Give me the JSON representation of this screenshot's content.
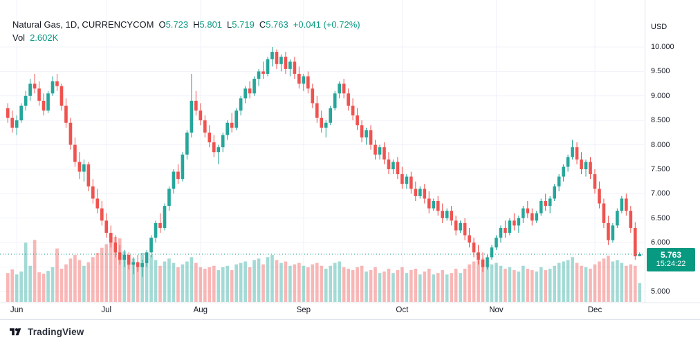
{
  "header": {
    "symbol": "Natural Gas, 1D, CURRENCYCOM",
    "open_label": "O",
    "open_value": "5.723",
    "high_label": "H",
    "high_value": "5.801",
    "low_label": "L",
    "low_value": "5.719",
    "close_label": "C",
    "close_value": "5.763",
    "change": "+0.041 (+0.72%)",
    "vol_label": "Vol",
    "vol_value": "2.602K"
  },
  "price_axis": {
    "currency": "USD",
    "labels": [
      "10.000",
      "9.500",
      "9.000",
      "8.500",
      "8.000",
      "7.500",
      "7.000",
      "6.500",
      "6.000",
      "5.000"
    ]
  },
  "price_badge": {
    "value": "5.763",
    "countdown": "15:24:22"
  },
  "logo": {
    "text": "TradingView"
  },
  "colors": {
    "up": "#26a69a",
    "down": "#ef5350",
    "vol_up": "rgba(38,166,154,0.42)",
    "vol_down": "rgba(239,83,80,0.42)",
    "accent_green": "#089981",
    "text": "#131722",
    "grid": "#f0f3fa",
    "separator": "#e0e3eb",
    "badge_bg": "#089981"
  },
  "chart_data": {
    "type": "candlestick",
    "title": "Natural Gas, 1D, CURRENCYCOM",
    "ylabel": "USD",
    "last_price": 5.763,
    "y_axis": {
      "min": 5.0,
      "max": 10.0,
      "ticks": [
        5.0,
        5.5,
        6.0,
        6.5,
        7.0,
        7.5,
        8.0,
        8.5,
        9.0,
        9.5,
        10.0
      ]
    },
    "x_axis": {
      "month_ticks": [
        {
          "label": "Jun",
          "index": 2
        },
        {
          "label": "Jul",
          "index": 22
        },
        {
          "label": "Aug",
          "index": 43
        },
        {
          "label": "Sep",
          "index": 66
        },
        {
          "label": "Oct",
          "index": 88
        },
        {
          "label": "Nov",
          "index": 109
        },
        {
          "label": "Dec",
          "index": 131
        }
      ]
    },
    "candles_format": [
      "open",
      "high",
      "low",
      "close",
      "volume_k"
    ],
    "candles": [
      [
        8.75,
        8.85,
        8.45,
        8.55,
        4.0
      ],
      [
        8.55,
        8.7,
        8.25,
        8.35,
        4.5
      ],
      [
        8.35,
        8.6,
        8.2,
        8.5,
        3.8
      ],
      [
        8.5,
        8.85,
        8.45,
        8.8,
        4.2
      ],
      [
        8.8,
        9.1,
        8.7,
        9.0,
        8.2
      ],
      [
        9.0,
        9.35,
        8.9,
        9.25,
        5.0
      ],
      [
        9.25,
        9.45,
        9.05,
        9.15,
        8.6
      ],
      [
        9.15,
        9.3,
        8.8,
        8.9,
        4.1
      ],
      [
        8.9,
        9.05,
        8.6,
        8.7,
        3.9
      ],
      [
        8.7,
        9.1,
        8.65,
        9.05,
        4.3
      ],
      [
        9.05,
        9.4,
        9.0,
        9.3,
        4.8
      ],
      [
        9.3,
        9.45,
        9.1,
        9.2,
        7.4
      ],
      [
        9.2,
        9.25,
        8.7,
        8.8,
        4.6
      ],
      [
        8.8,
        8.95,
        8.35,
        8.45,
        5.2
      ],
      [
        8.45,
        8.55,
        7.9,
        8.0,
        6.0
      ],
      [
        8.0,
        8.15,
        7.55,
        7.65,
        6.5
      ],
      [
        7.65,
        7.85,
        7.3,
        7.45,
        5.8
      ],
      [
        7.45,
        7.7,
        7.25,
        7.6,
        5.0
      ],
      [
        7.6,
        7.65,
        7.05,
        7.15,
        5.5
      ],
      [
        7.15,
        7.3,
        6.8,
        6.9,
        6.2
      ],
      [
        6.9,
        7.1,
        6.6,
        6.7,
        6.8
      ],
      [
        6.7,
        6.85,
        6.35,
        6.45,
        7.5
      ],
      [
        6.45,
        6.6,
        6.1,
        6.2,
        8.0
      ],
      [
        6.2,
        6.35,
        5.9,
        6.0,
        8.5
      ],
      [
        6.0,
        6.15,
        5.7,
        5.8,
        9.0
      ],
      [
        5.8,
        5.95,
        5.55,
        5.65,
        8.8
      ],
      [
        5.65,
        5.85,
        5.5,
        5.75,
        7.0
      ],
      [
        5.75,
        5.8,
        5.45,
        5.55,
        6.5
      ],
      [
        5.55,
        5.7,
        5.35,
        5.6,
        6.0
      ],
      [
        5.6,
        5.75,
        5.4,
        5.5,
        5.5
      ],
      [
        5.5,
        5.65,
        5.3,
        5.58,
        6.8
      ],
      [
        5.58,
        5.85,
        5.5,
        5.8,
        6.2
      ],
      [
        5.8,
        6.15,
        5.7,
        6.1,
        6.5
      ],
      [
        6.1,
        6.45,
        6.0,
        6.4,
        5.8
      ],
      [
        6.4,
        6.6,
        6.2,
        6.3,
        5.0
      ],
      [
        6.3,
        6.8,
        6.25,
        6.75,
        5.6
      ],
      [
        6.75,
        7.15,
        6.65,
        7.1,
        6.0
      ],
      [
        7.1,
        7.5,
        7.0,
        7.45,
        5.4
      ],
      [
        7.45,
        7.6,
        7.2,
        7.3,
        4.8
      ],
      [
        7.3,
        7.85,
        7.25,
        7.8,
        5.2
      ],
      [
        7.8,
        8.3,
        7.7,
        8.25,
        5.6
      ],
      [
        8.25,
        9.45,
        8.15,
        8.9,
        6.2
      ],
      [
        8.9,
        9.1,
        8.6,
        8.7,
        5.4
      ],
      [
        8.7,
        8.85,
        8.4,
        8.5,
        4.8
      ],
      [
        8.5,
        8.6,
        8.15,
        8.25,
        4.6
      ],
      [
        8.25,
        8.4,
        7.95,
        8.05,
        4.8
      ],
      [
        8.05,
        8.2,
        7.75,
        7.85,
        5.0
      ],
      [
        7.85,
        8.0,
        7.6,
        7.95,
        4.4
      ],
      [
        7.95,
        8.25,
        7.85,
        8.2,
        4.8
      ],
      [
        8.2,
        8.5,
        8.1,
        8.45,
        5.0
      ],
      [
        8.45,
        8.65,
        8.25,
        8.35,
        4.4
      ],
      [
        8.35,
        8.75,
        8.3,
        8.7,
        5.2
      ],
      [
        8.7,
        9.0,
        8.6,
        8.95,
        5.4
      ],
      [
        8.95,
        9.2,
        8.85,
        9.15,
        5.6
      ],
      [
        9.15,
        9.3,
        8.95,
        9.05,
        4.8
      ],
      [
        9.05,
        9.4,
        9.0,
        9.35,
        5.8
      ],
      [
        9.35,
        9.55,
        9.2,
        9.5,
        6.0
      ],
      [
        9.5,
        9.7,
        9.35,
        9.45,
        5.2
      ],
      [
        9.45,
        9.8,
        9.4,
        9.75,
        6.2
      ],
      [
        9.75,
        10.0,
        9.6,
        9.9,
        6.5
      ],
      [
        9.9,
        9.95,
        9.55,
        9.65,
        5.8
      ],
      [
        9.65,
        9.85,
        9.5,
        9.8,
        5.4
      ],
      [
        9.8,
        9.9,
        9.45,
        9.55,
        5.6
      ],
      [
        9.55,
        9.75,
        9.4,
        9.7,
        5.0
      ],
      [
        9.7,
        9.8,
        9.35,
        9.45,
        5.2
      ],
      [
        9.45,
        9.6,
        9.15,
        9.25,
        5.4
      ],
      [
        9.25,
        9.45,
        9.1,
        9.4,
        5.0
      ],
      [
        9.4,
        9.5,
        9.05,
        9.15,
        4.8
      ],
      [
        9.15,
        9.25,
        8.75,
        8.85,
        5.2
      ],
      [
        8.85,
        9.0,
        8.45,
        8.55,
        5.4
      ],
      [
        8.55,
        8.7,
        8.25,
        8.35,
        5.0
      ],
      [
        8.35,
        8.5,
        8.15,
        8.45,
        4.6
      ],
      [
        8.45,
        8.8,
        8.4,
        8.75,
        5.0
      ],
      [
        8.75,
        9.1,
        8.7,
        9.05,
        5.4
      ],
      [
        9.05,
        9.3,
        8.95,
        9.25,
        5.6
      ],
      [
        9.25,
        9.35,
        8.95,
        9.05,
        4.8
      ],
      [
        9.05,
        9.15,
        8.7,
        8.8,
        4.6
      ],
      [
        8.8,
        8.95,
        8.5,
        8.6,
        4.4
      ],
      [
        8.6,
        8.75,
        8.3,
        8.4,
        4.8
      ],
      [
        8.4,
        8.5,
        8.05,
        8.15,
        5.0
      ],
      [
        8.15,
        8.35,
        8.0,
        8.3,
        4.2
      ],
      [
        8.3,
        8.4,
        7.9,
        8.0,
        4.4
      ],
      [
        8.0,
        8.1,
        7.7,
        7.8,
        4.8
      ],
      [
        7.8,
        8.0,
        7.7,
        7.95,
        4.0
      ],
      [
        7.95,
        8.05,
        7.6,
        7.7,
        4.2
      ],
      [
        7.7,
        7.85,
        7.4,
        7.5,
        4.6
      ],
      [
        7.5,
        7.7,
        7.4,
        7.65,
        4.0
      ],
      [
        7.65,
        7.75,
        7.3,
        7.4,
        4.4
      ],
      [
        7.4,
        7.55,
        7.1,
        7.2,
        4.8
      ],
      [
        7.2,
        7.4,
        7.1,
        7.35,
        4.0
      ],
      [
        7.35,
        7.45,
        7.0,
        7.1,
        4.4
      ],
      [
        7.1,
        7.25,
        6.85,
        6.95,
        4.6
      ],
      [
        6.95,
        7.15,
        6.9,
        7.1,
        3.8
      ],
      [
        7.1,
        7.2,
        6.8,
        6.9,
        4.2
      ],
      [
        6.9,
        7.05,
        6.6,
        6.7,
        4.6
      ],
      [
        6.7,
        6.9,
        6.65,
        6.85,
        3.8
      ],
      [
        6.85,
        6.95,
        6.55,
        6.65,
        4.0
      ],
      [
        6.65,
        6.8,
        6.4,
        6.5,
        4.4
      ],
      [
        6.5,
        6.7,
        6.45,
        6.65,
        3.8
      ],
      [
        6.65,
        6.75,
        6.35,
        6.45,
        4.0
      ],
      [
        6.45,
        6.55,
        6.15,
        6.25,
        4.6
      ],
      [
        6.25,
        6.45,
        6.2,
        6.4,
        4.0
      ],
      [
        6.4,
        6.5,
        6.05,
        6.15,
        4.6
      ],
      [
        6.15,
        6.3,
        5.9,
        6.0,
        5.2
      ],
      [
        6.0,
        6.1,
        5.7,
        5.8,
        5.6
      ],
      [
        5.8,
        5.95,
        5.55,
        5.65,
        5.8
      ],
      [
        5.65,
        5.8,
        5.4,
        5.5,
        6.0
      ],
      [
        5.5,
        5.75,
        5.45,
        5.7,
        5.0
      ],
      [
        5.7,
        5.95,
        5.65,
        5.9,
        5.2
      ],
      [
        5.9,
        6.15,
        5.85,
        6.1,
        5.4
      ],
      [
        6.1,
        6.35,
        6.0,
        6.3,
        5.0
      ],
      [
        6.3,
        6.45,
        6.1,
        6.2,
        4.6
      ],
      [
        6.2,
        6.5,
        6.15,
        6.45,
        4.8
      ],
      [
        6.45,
        6.6,
        6.25,
        6.35,
        4.4
      ],
      [
        6.35,
        6.55,
        6.2,
        6.5,
        4.2
      ],
      [
        6.5,
        6.75,
        6.4,
        6.7,
        5.0
      ],
      [
        6.7,
        6.85,
        6.5,
        6.6,
        4.6
      ],
      [
        6.6,
        6.7,
        6.35,
        6.45,
        4.4
      ],
      [
        6.45,
        6.65,
        6.4,
        6.6,
        4.2
      ],
      [
        6.6,
        6.9,
        6.55,
        6.85,
        4.8
      ],
      [
        6.85,
        7.0,
        6.65,
        6.75,
        4.4
      ],
      [
        6.75,
        6.95,
        6.6,
        6.9,
        4.6
      ],
      [
        6.9,
        7.2,
        6.85,
        7.15,
        5.0
      ],
      [
        7.15,
        7.4,
        7.05,
        7.35,
        5.4
      ],
      [
        7.35,
        7.6,
        7.25,
        7.55,
        5.6
      ],
      [
        7.55,
        7.8,
        7.45,
        7.75,
        5.8
      ],
      [
        7.75,
        8.1,
        7.7,
        7.95,
        6.2
      ],
      [
        7.95,
        8.05,
        7.6,
        7.7,
        5.4
      ],
      [
        7.7,
        7.85,
        7.4,
        7.5,
        5.0
      ],
      [
        7.5,
        7.7,
        7.35,
        7.65,
        4.8
      ],
      [
        7.65,
        7.75,
        7.3,
        7.4,
        4.6
      ],
      [
        7.4,
        7.5,
        7.0,
        7.1,
        5.2
      ],
      [
        7.1,
        7.25,
        6.7,
        6.8,
        5.6
      ],
      [
        6.8,
        6.9,
        6.3,
        6.4,
        6.0
      ],
      [
        6.4,
        6.55,
        5.95,
        6.05,
        6.4
      ],
      [
        6.05,
        6.4,
        6.0,
        6.35,
        5.6
      ],
      [
        6.35,
        6.7,
        6.3,
        6.65,
        5.8
      ],
      [
        6.65,
        6.95,
        6.6,
        6.9,
        5.4
      ],
      [
        6.9,
        7.0,
        6.55,
        6.65,
        5.0
      ],
      [
        6.65,
        6.75,
        6.2,
        6.3,
        5.2
      ],
      [
        6.3,
        6.42,
        5.65,
        5.72,
        5.0
      ],
      [
        5.723,
        5.801,
        5.719,
        5.763,
        2.602
      ]
    ]
  }
}
